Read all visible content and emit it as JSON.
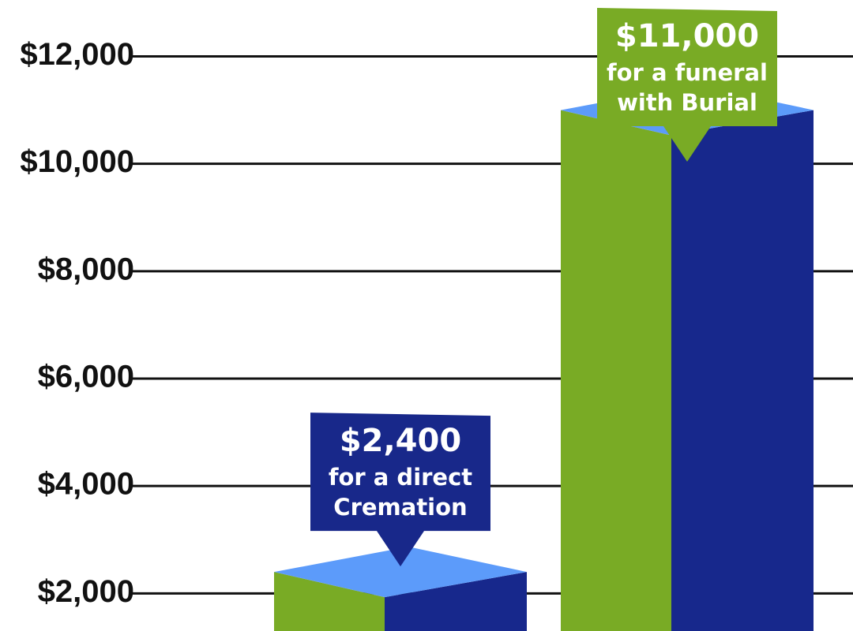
{
  "chart_data": {
    "type": "bar3d",
    "values": [
      2400,
      11000
    ],
    "value_labels": [
      "$2,400",
      "$11,000"
    ],
    "annotations": [
      [
        "for a direct",
        "Cremation"
      ],
      [
        "for a funeral",
        "with Burial"
      ]
    ],
    "label_colors": [
      "#18288a",
      "#79ab25"
    ],
    "colors": {
      "left": "#79ab25",
      "right": "#17288c",
      "top": "#5c9bfa"
    },
    "ylim": [
      1300,
      13050
    ],
    "yticks": [
      {
        "value": 2000,
        "label": "$2,000"
      },
      {
        "value": 4000,
        "label": "$4,000"
      },
      {
        "value": 6000,
        "label": "$6,000"
      },
      {
        "value": 8000,
        "label": "$8,000"
      },
      {
        "value": 10000,
        "label": "$10,000"
      },
      {
        "value": 12000,
        "label": "$12,000"
      }
    ],
    "grid": true
  }
}
